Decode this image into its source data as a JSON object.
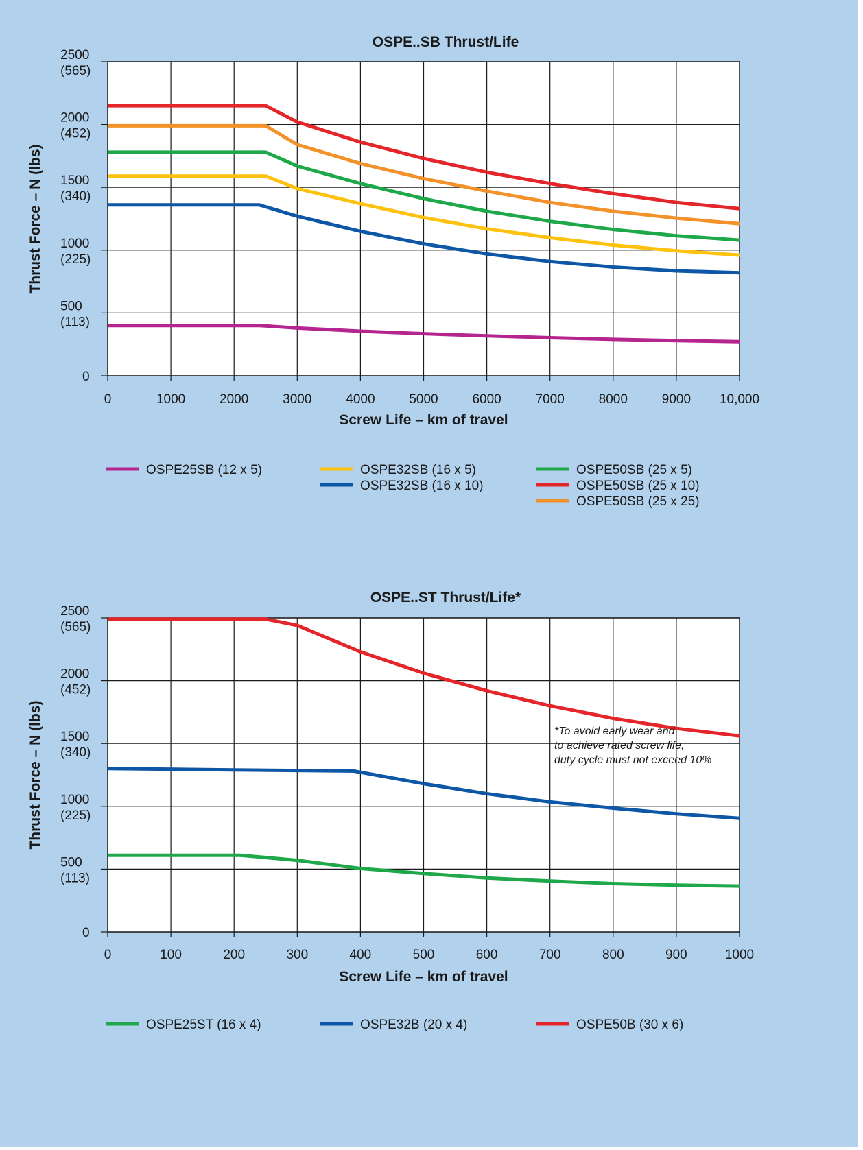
{
  "charts": [
    {
      "chart_data": {
        "type": "line",
        "title": "OSPE..SB Thrust/Life",
        "xlabel": "Screw Life – km of travel",
        "ylabel": "Thrust Force – N (lbs)",
        "xlim": [
          0,
          10000
        ],
        "ylim": [
          0,
          2500
        ],
        "x_ticks": [
          "0",
          "1000",
          "2000",
          "3000",
          "4000",
          "5000",
          "6000",
          "7000",
          "8000",
          "9000",
          "10,000"
        ],
        "y_ticks": [
          {
            "value": 0,
            "label": "0",
            "sub": ""
          },
          {
            "value": 500,
            "label": "500",
            "sub": "(113)"
          },
          {
            "value": 1000,
            "label": "1000",
            "sub": "(225)"
          },
          {
            "value": 1500,
            "label": "1500",
            "sub": "(340)"
          },
          {
            "value": 2000,
            "label": "2000",
            "sub": "(452)"
          },
          {
            "value": 2500,
            "label": "2500",
            "sub": "(565)"
          }
        ],
        "grid": true,
        "series": [
          {
            "name": "OSPE25SB (12 x 5)",
            "color": "#b5258f",
            "points": [
              [
                0,
                400
              ],
              [
                2400,
                400
              ],
              [
                3000,
                380
              ],
              [
                4000,
                355
              ],
              [
                5000,
                335
              ],
              [
                6000,
                318
              ],
              [
                7000,
                303
              ],
              [
                8000,
                290
              ],
              [
                9000,
                280
              ],
              [
                10000,
                272
              ]
            ]
          },
          {
            "name": "OSPE32SB (16 x 5)",
            "color": "#fcc20e",
            "points": [
              [
                0,
                1590
              ],
              [
                2500,
                1590
              ],
              [
                3000,
                1490
              ],
              [
                4000,
                1370
              ],
              [
                5000,
                1260
              ],
              [
                6000,
                1170
              ],
              [
                7000,
                1100
              ],
              [
                8000,
                1040
              ],
              [
                9000,
                995
              ],
              [
                10000,
                960
              ]
            ]
          },
          {
            "name": "OSPE32SB (16 x 10)",
            "color": "#0e57a6",
            "points": [
              [
                0,
                1360
              ],
              [
                2400,
                1360
              ],
              [
                3000,
                1270
              ],
              [
                4000,
                1150
              ],
              [
                5000,
                1050
              ],
              [
                6000,
                970
              ],
              [
                7000,
                910
              ],
              [
                8000,
                865
              ],
              [
                9000,
                835
              ],
              [
                10000,
                820
              ]
            ]
          },
          {
            "name": "OSPE50SB (25 x 5)",
            "color": "#1ea84a",
            "points": [
              [
                0,
                1780
              ],
              [
                2500,
                1780
              ],
              [
                3000,
                1670
              ],
              [
                4000,
                1530
              ],
              [
                5000,
                1410
              ],
              [
                6000,
                1310
              ],
              [
                7000,
                1230
              ],
              [
                8000,
                1165
              ],
              [
                9000,
                1115
              ],
              [
                10000,
                1080
              ]
            ]
          },
          {
            "name": "OSPE50SB (25 x 10)",
            "color": "#e4262a",
            "points": [
              [
                0,
                2150
              ],
              [
                2500,
                2150
              ],
              [
                3000,
                2020
              ],
              [
                4000,
                1860
              ],
              [
                5000,
                1730
              ],
              [
                6000,
                1620
              ],
              [
                7000,
                1530
              ],
              [
                8000,
                1450
              ],
              [
                9000,
                1380
              ],
              [
                10000,
                1330
              ]
            ]
          },
          {
            "name": "OSPE50SB (25 x 25)",
            "color": "#f3922b",
            "points": [
              [
                0,
                1990
              ],
              [
                2500,
                1990
              ],
              [
                3000,
                1840
              ],
              [
                4000,
                1690
              ],
              [
                5000,
                1570
              ],
              [
                6000,
                1470
              ],
              [
                7000,
                1380
              ],
              [
                8000,
                1310
              ],
              [
                9000,
                1255
              ],
              [
                10000,
                1210
              ]
            ]
          }
        ]
      },
      "legend": [
        {
          "label": "OSPE25SB (12 x 5)",
          "color": "#b5258f",
          "col": 0,
          "row": 0
        },
        {
          "label": "OSPE32SB (16 x 5)",
          "color": "#fcc20e",
          "col": 1,
          "row": 0
        },
        {
          "label": "OSPE32SB (16 x 10)",
          "color": "#0e57a6",
          "col": 1,
          "row": 1
        },
        {
          "label": "OSPE50SB (25 x 5)",
          "color": "#1ea84a",
          "col": 2,
          "row": 0
        },
        {
          "label": "OSPE50SB (25 x 10)",
          "color": "#e4262a",
          "col": 2,
          "row": 1
        },
        {
          "label": "OSPE50SB (25 x 25)",
          "color": "#f3922b",
          "col": 2,
          "row": 2
        }
      ],
      "note": []
    },
    {
      "chart_data": {
        "type": "line",
        "title": "OSPE..ST Thrust/Life*",
        "xlabel": "Screw Life – km of travel",
        "ylabel": "Thrust Force – N (lbs)",
        "xlim": [
          0,
          1000
        ],
        "ylim": [
          0,
          2500
        ],
        "x_ticks": [
          "0",
          "100",
          "200",
          "300",
          "400",
          "500",
          "600",
          "700",
          "800",
          "900",
          "1000"
        ],
        "y_ticks": [
          {
            "value": 0,
            "label": "0",
            "sub": ""
          },
          {
            "value": 500,
            "label": "500",
            "sub": "(113)"
          },
          {
            "value": 1000,
            "label": "1000",
            "sub": "(225)"
          },
          {
            "value": 1500,
            "label": "1500",
            "sub": "(340)"
          },
          {
            "value": 2000,
            "label": "2000",
            "sub": "(452)"
          },
          {
            "value": 2500,
            "label": "2500",
            "sub": "(565)"
          }
        ],
        "grid": true,
        "series": [
          {
            "name": "OSPE25ST (16 x 4)",
            "color": "#1ea84a",
            "points": [
              [
                0,
                610
              ],
              [
                210,
                610
              ],
              [
                300,
                570
              ],
              [
                400,
                505
              ],
              [
                500,
                465
              ],
              [
                600,
                430
              ],
              [
                700,
                405
              ],
              [
                800,
                385
              ],
              [
                900,
                372
              ],
              [
                1000,
                365
              ]
            ]
          },
          {
            "name": "OSPE32B (20 x 4)",
            "color": "#0e57a6",
            "points": [
              [
                0,
                1300
              ],
              [
                200,
                1290
              ],
              [
                390,
                1280
              ],
              [
                500,
                1180
              ],
              [
                600,
                1100
              ],
              [
                700,
                1035
              ],
              [
                800,
                985
              ],
              [
                900,
                940
              ],
              [
                1000,
                905
              ]
            ]
          },
          {
            "name": "OSPE50B (30 x 6)",
            "color": "#e4262a",
            "points": [
              [
                0,
                2490
              ],
              [
                250,
                2490
              ],
              [
                300,
                2440
              ],
              [
                400,
                2230
              ],
              [
                500,
                2060
              ],
              [
                600,
                1920
              ],
              [
                700,
                1800
              ],
              [
                800,
                1700
              ],
              [
                900,
                1620
              ],
              [
                1000,
                1560
              ]
            ]
          }
        ]
      },
      "legend": [
        {
          "label": "OSPE25ST (16 x 4)",
          "color": "#1ea84a",
          "col": 0,
          "row": 0
        },
        {
          "label": "OSPE32B (20 x 4)",
          "color": "#0e57a6",
          "col": 1,
          "row": 0
        },
        {
          "label": "OSPE50B (30 x 6)",
          "color": "#e4262a",
          "col": 2,
          "row": 0
        }
      ],
      "note": [
        "*To avoid early wear and",
        "to achieve rated screw life,",
        "duty cycle must not exceed 10%"
      ]
    }
  ]
}
